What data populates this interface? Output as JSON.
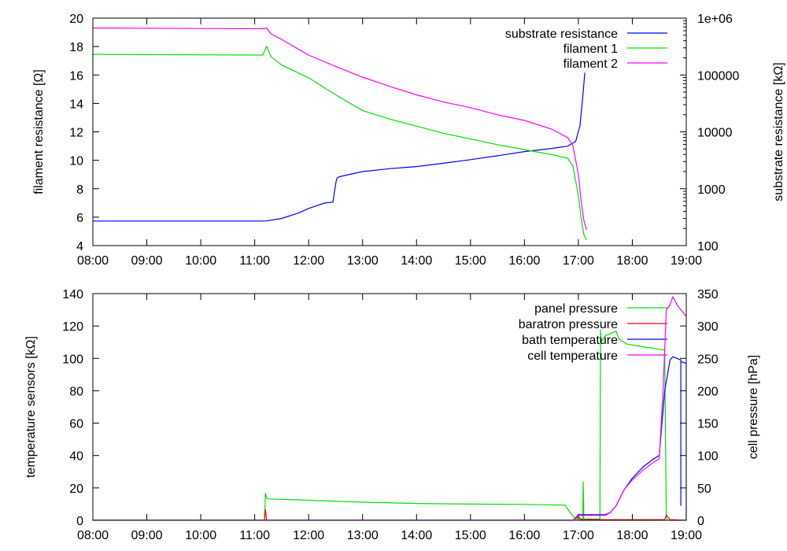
{
  "chart_data": [
    {
      "type": "line",
      "xlabel": "",
      "ylabel": "filament resistance [Ω]",
      "y2label": "substrate resistance [kΩ]",
      "xlim": [
        8,
        19
      ],
      "xticks": [
        "08:00",
        "09:00",
        "10:00",
        "11:00",
        "12:00",
        "13:00",
        "14:00",
        "15:00",
        "16:00",
        "17:00",
        "18:00",
        "19:00"
      ],
      "ylim": [
        4,
        20
      ],
      "yticks": [
        "4",
        "6",
        "8",
        "10",
        "12",
        "14",
        "16",
        "18",
        "20"
      ],
      "y2lim": [
        100,
        1000000
      ],
      "y2scale": "log",
      "y2ticks": [
        "100",
        "1000",
        "10000",
        "100000",
        "1e+06"
      ],
      "legend": "top-right",
      "series": [
        {
          "name": "substrate resistance",
          "axis": "y2",
          "color": "#0000ff",
          "x": [
            8,
            11.2,
            11.5,
            11.8,
            12.0,
            12.3,
            12.45,
            12.5,
            12.52,
            12.55,
            12.6,
            13.0,
            13.5,
            14.0,
            14.5,
            15.0,
            15.5,
            16.0,
            16.5,
            16.8,
            16.95,
            17.03,
            17.08,
            17.12
          ],
          "y": [
            270,
            270,
            300,
            370,
            450,
            560,
            580,
            1200,
            1500,
            1600,
            1650,
            2000,
            2250,
            2450,
            2800,
            3250,
            3800,
            4500,
            5100,
            5600,
            6800,
            13000,
            40000,
            110000
          ]
        },
        {
          "name": "filament 1",
          "axis": "y",
          "color": "#00e000",
          "x": [
            8,
            11.15,
            11.22,
            11.3,
            11.5,
            12.0,
            12.5,
            13.0,
            13.5,
            14.0,
            14.5,
            15.0,
            15.5,
            16.0,
            16.5,
            16.8,
            16.9,
            17.0,
            17.05,
            17.1,
            17.15
          ],
          "y": [
            17.45,
            17.4,
            18.0,
            17.3,
            16.7,
            15.8,
            14.6,
            13.5,
            12.9,
            12.4,
            11.9,
            11.5,
            11.1,
            10.75,
            10.4,
            10.15,
            9.6,
            7.5,
            6.0,
            4.8,
            4.4
          ]
        },
        {
          "name": "filament 2",
          "axis": "y",
          "color": "#ff00ff",
          "x": [
            8,
            11.15,
            11.22,
            11.3,
            11.5,
            12.0,
            12.5,
            13.0,
            13.5,
            14.0,
            14.5,
            15.0,
            15.5,
            16.0,
            16.5,
            16.8,
            16.9,
            17.0,
            17.05,
            17.1,
            17.15
          ],
          "y": [
            19.3,
            19.25,
            19.3,
            18.9,
            18.5,
            17.4,
            16.6,
            15.85,
            15.2,
            14.6,
            14.1,
            13.7,
            13.2,
            12.8,
            12.2,
            11.6,
            11.0,
            9.0,
            7.2,
            5.8,
            5.1
          ]
        }
      ]
    },
    {
      "type": "line",
      "xlabel": "",
      "ylabel": "temperature sensors [kΩ]",
      "y2label": "cell pressure [hPa]",
      "xlim": [
        8,
        19
      ],
      "xticks": [
        "08:00",
        "09:00",
        "10:00",
        "11:00",
        "12:00",
        "13:00",
        "14:00",
        "15:00",
        "16:00",
        "17:00",
        "18:00",
        "19:00"
      ],
      "ylim": [
        0,
        140
      ],
      "yticks": [
        "0",
        "20",
        "40",
        "60",
        "80",
        "100",
        "120",
        "140"
      ],
      "y2lim": [
        0,
        350
      ],
      "y2ticks": [
        "0",
        "50",
        "100",
        "150",
        "200",
        "250",
        "300",
        "350"
      ],
      "legend": "top-right",
      "series": [
        {
          "name": "panel pressure",
          "axis": "y2",
          "color": "#00e000",
          "x": [
            8,
            11.18,
            11.2,
            11.22,
            11.25,
            12.0,
            13.0,
            14.0,
            15.0,
            16.0,
            16.75,
            16.85,
            16.95,
            17.08,
            17.09,
            17.1,
            17.4,
            17.41,
            17.42,
            17.5,
            17.7,
            17.75,
            17.9,
            18.2,
            18.5,
            18.6,
            18.63,
            18.65,
            19.0
          ],
          "y": [
            0,
            0,
            42,
            34,
            33,
            31,
            28,
            26,
            25,
            24.5,
            23.5,
            12,
            2,
            2,
            60,
            2,
            2,
            295,
            275,
            285,
            292,
            280,
            272,
            268,
            264,
            263,
            5,
            0,
            0
          ]
        },
        {
          "name": "baratron pressure",
          "axis": "y2",
          "color": "#ff0000",
          "x": [
            8,
            11.18,
            11.2,
            11.22,
            16.9,
            17.0,
            17.05,
            18.6,
            18.63,
            18.7,
            19.0
          ],
          "y": [
            0,
            0,
            17,
            0,
            0,
            6,
            1,
            1,
            8,
            1,
            0
          ]
        },
        {
          "name": "bath temperature",
          "axis": "y",
          "color": "#0000ff",
          "x": [
            8,
            16.9,
            17.0,
            17.5,
            17.6,
            17.7,
            17.85,
            18.0,
            18.2,
            18.4,
            18.5,
            18.6,
            18.7,
            18.75,
            18.9,
            18.9,
            18.9,
            19.0,
            19.0
          ],
          "y": [
            0,
            0,
            3.5,
            3.5,
            5,
            9,
            19,
            26,
            33,
            38,
            40,
            80,
            99,
            101,
            99,
            9,
            98,
            97,
            0
          ]
        },
        {
          "name": "cell temperature",
          "axis": "y",
          "color": "#ff00ff",
          "x": [
            8,
            16.9,
            17.0,
            17.5,
            17.6,
            17.7,
            17.85,
            18.0,
            18.2,
            18.4,
            18.5,
            18.57,
            18.63,
            18.7,
            18.75,
            18.85,
            19.0
          ],
          "y": [
            0,
            0,
            3,
            3,
            5,
            9,
            19,
            25,
            31,
            36,
            38,
            80,
            130,
            133,
            138,
            132,
            126
          ]
        }
      ]
    }
  ]
}
